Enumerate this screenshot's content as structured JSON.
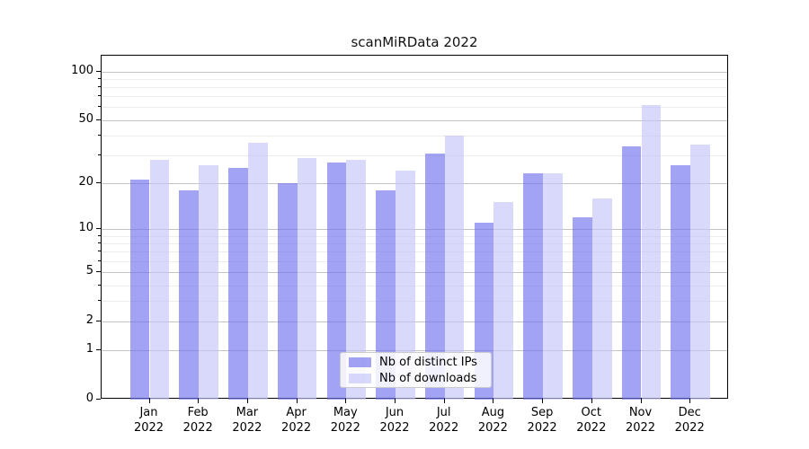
{
  "title": "scanMiRData 2022",
  "chart_data": {
    "type": "bar",
    "title": "scanMiRData 2022",
    "x_months": [
      "Jan",
      "Feb",
      "Mar",
      "Apr",
      "May",
      "Jun",
      "Jul",
      "Aug",
      "Sep",
      "Oct",
      "Nov",
      "Dec"
    ],
    "x_year": "2022",
    "categories": [
      "Jan 2022",
      "Feb 2022",
      "Mar 2022",
      "Apr 2022",
      "May 2022",
      "Jun 2022",
      "Jul 2022",
      "Aug 2022",
      "Sep 2022",
      "Oct 2022",
      "Nov 2022",
      "Dec 2022"
    ],
    "series": [
      {
        "name": "Nb of distinct IPs",
        "color": "rgba(113,113,236,0.65)",
        "values": [
          21,
          18,
          25,
          20,
          27,
          18,
          31,
          11,
          23,
          12,
          34,
          26
        ]
      },
      {
        "name": "Nb of downloads",
        "color": "rgba(196,196,249,0.65)",
        "values": [
          28,
          26,
          36,
          29,
          28,
          24,
          40,
          15,
          23,
          16,
          62,
          35
        ]
      }
    ],
    "y_scale": "log1p",
    "y_major_ticks": [
      100,
      50,
      20,
      10,
      5,
      2,
      1,
      0
    ],
    "y_minor_gridlines": [
      3,
      4,
      6,
      7,
      8,
      9,
      30,
      40,
      60,
      70,
      80,
      90
    ],
    "ylim": [
      0,
      125
    ],
    "grid": true,
    "legend_position": "lower center",
    "accent_colors": {
      "bar_dark": "#a2a2f2",
      "bar_light": "#d9d9f9",
      "grid_major": "#c3c3c3",
      "grid_minor": "#ececec"
    }
  }
}
